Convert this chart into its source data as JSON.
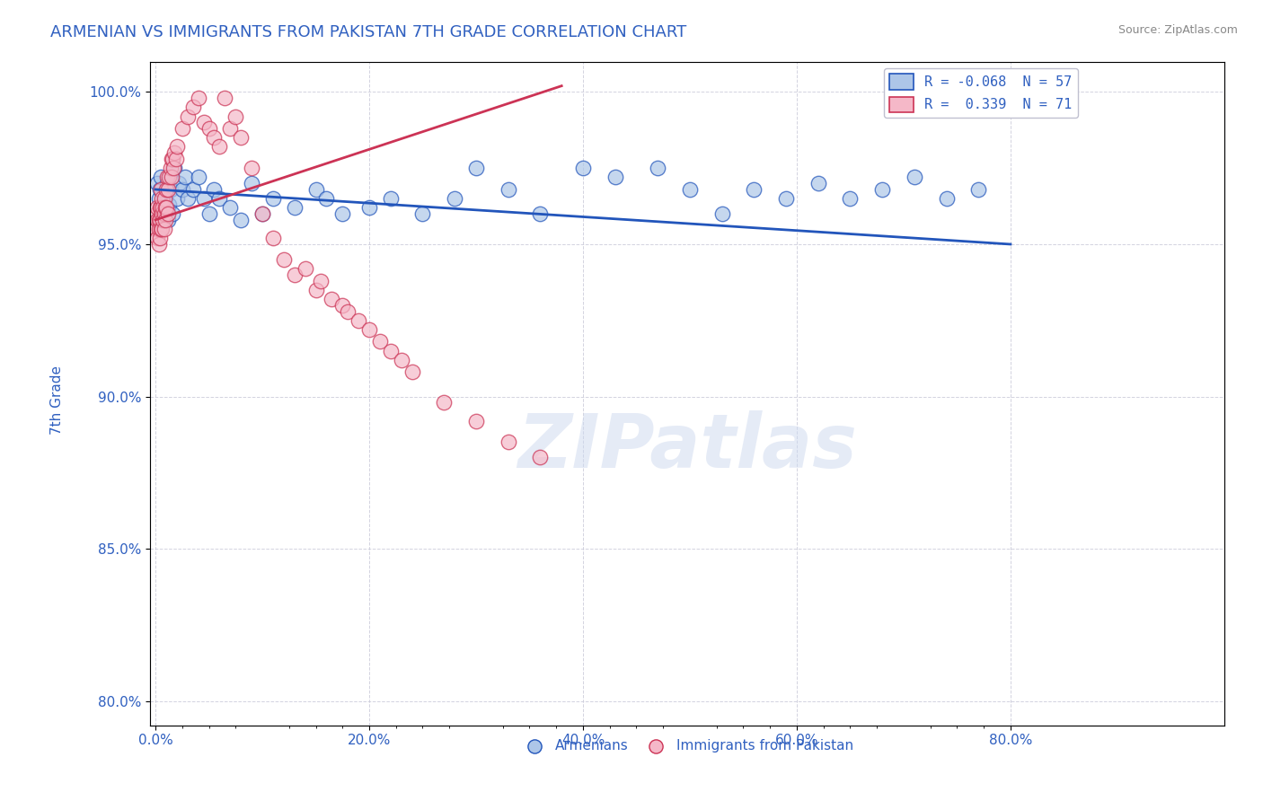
{
  "title": "ARMENIAN VS IMMIGRANTS FROM PAKISTAN 7TH GRADE CORRELATION CHART",
  "source": "Source: ZipAtlas.com",
  "ylabel": "7th Grade",
  "xlabel_ticks": [
    "0.0%",
    "",
    "",
    "",
    "",
    "",
    "",
    "",
    "20.0%",
    "",
    "",
    "",
    "",
    "",
    "",
    "",
    "40.0%",
    "",
    "",
    "",
    "",
    "",
    "",
    "",
    "60.0%",
    "",
    "",
    "",
    "",
    "",
    "",
    "",
    "80.0%"
  ],
  "xtick_vals": [
    0.0,
    0.025,
    0.05,
    0.075,
    0.1,
    0.125,
    0.15,
    0.175,
    0.2,
    0.225,
    0.25,
    0.275,
    0.3,
    0.325,
    0.35,
    0.375,
    0.4,
    0.425,
    0.45,
    0.475,
    0.5,
    0.525,
    0.55,
    0.575,
    0.6,
    0.625,
    0.65,
    0.675,
    0.7,
    0.725,
    0.75,
    0.775,
    0.8
  ],
  "xlabel_labels": [
    "0.0%",
    "",
    "",
    "",
    "",
    "",
    "",
    "",
    "20.0%",
    "",
    "",
    "",
    "",
    "",
    "",
    "",
    "40.0%",
    "",
    "",
    "",
    "",
    "",
    "",
    "",
    "60.0%",
    "",
    "",
    "",
    "",
    "",
    "",
    "",
    "80.0%"
  ],
  "ytick_vals": [
    0.8,
    0.85,
    0.9,
    0.95,
    1.0
  ],
  "ylabel_labels": [
    "80.0%",
    "85.0%",
    "90.0%",
    "95.0%",
    "100.0%"
  ],
  "xlim": [
    -0.005,
    0.815
  ],
  "ylim": [
    0.792,
    1.01
  ],
  "legend_blue_label": "R = -0.068  N = 57",
  "legend_pink_label": "R =  0.339  N = 71",
  "blue_color": "#adc6e8",
  "pink_color": "#f5b8c8",
  "blue_line_color": "#2255bb",
  "pink_line_color": "#cc3355",
  "watermark": "ZIPatlas",
  "blue_x": [
    0.002,
    0.003,
    0.004,
    0.005,
    0.006,
    0.007,
    0.008,
    0.009,
    0.01,
    0.011,
    0.012,
    0.013,
    0.014,
    0.015,
    0.016,
    0.018,
    0.02,
    0.022,
    0.025,
    0.028,
    0.03,
    0.035,
    0.04,
    0.045,
    0.05,
    0.055,
    0.06,
    0.07,
    0.08,
    0.09,
    0.1,
    0.11,
    0.13,
    0.15,
    0.16,
    0.175,
    0.2,
    0.22,
    0.25,
    0.28,
    0.3,
    0.33,
    0.36,
    0.4,
    0.43,
    0.47,
    0.5,
    0.53,
    0.56,
    0.59,
    0.62,
    0.65,
    0.68,
    0.71,
    0.74,
    0.77,
    0.8
  ],
  "blue_y": [
    0.97,
    0.965,
    0.968,
    0.972,
    0.96,
    0.963,
    0.958,
    0.965,
    0.96,
    0.97,
    0.958,
    0.963,
    0.968,
    0.972,
    0.96,
    0.975,
    0.965,
    0.97,
    0.968,
    0.972,
    0.965,
    0.968,
    0.972,
    0.965,
    0.96,
    0.968,
    0.965,
    0.962,
    0.958,
    0.97,
    0.96,
    0.965,
    0.962,
    0.968,
    0.965,
    0.96,
    0.962,
    0.965,
    0.96,
    0.965,
    0.975,
    0.968,
    0.96,
    0.975,
    0.972,
    0.975,
    0.968,
    0.96,
    0.968,
    0.965,
    0.97,
    0.965,
    0.968,
    0.972,
    0.965,
    0.968,
    1.0
  ],
  "pink_x": [
    0.001,
    0.001,
    0.002,
    0.002,
    0.002,
    0.003,
    0.003,
    0.003,
    0.004,
    0.004,
    0.004,
    0.005,
    0.005,
    0.005,
    0.006,
    0.006,
    0.006,
    0.007,
    0.007,
    0.008,
    0.008,
    0.008,
    0.009,
    0.009,
    0.01,
    0.01,
    0.011,
    0.012,
    0.012,
    0.013,
    0.014,
    0.015,
    0.015,
    0.016,
    0.017,
    0.018,
    0.019,
    0.02,
    0.025,
    0.03,
    0.035,
    0.04,
    0.045,
    0.05,
    0.055,
    0.06,
    0.065,
    0.07,
    0.075,
    0.08,
    0.09,
    0.1,
    0.11,
    0.12,
    0.13,
    0.14,
    0.15,
    0.155,
    0.165,
    0.175,
    0.18,
    0.19,
    0.2,
    0.21,
    0.22,
    0.23,
    0.24,
    0.27,
    0.3,
    0.33,
    0.36
  ],
  "pink_y": [
    0.96,
    0.955,
    0.962,
    0.958,
    0.952,
    0.958,
    0.955,
    0.95,
    0.962,
    0.958,
    0.952,
    0.968,
    0.962,
    0.955,
    0.965,
    0.96,
    0.955,
    0.962,
    0.958,
    0.965,
    0.96,
    0.955,
    0.962,
    0.958,
    0.968,
    0.962,
    0.972,
    0.968,
    0.96,
    0.972,
    0.975,
    0.978,
    0.972,
    0.978,
    0.975,
    0.98,
    0.978,
    0.982,
    0.988,
    0.992,
    0.995,
    0.998,
    0.99,
    0.988,
    0.985,
    0.982,
    0.998,
    0.988,
    0.992,
    0.985,
    0.975,
    0.96,
    0.952,
    0.945,
    0.94,
    0.942,
    0.935,
    0.938,
    0.932,
    0.93,
    0.928,
    0.925,
    0.922,
    0.918,
    0.915,
    0.912,
    0.908,
    0.898,
    0.892,
    0.885,
    0.88
  ],
  "blue_trend_x": [
    0.0,
    0.8
  ],
  "blue_trend_y": [
    0.968,
    0.95
  ],
  "pink_trend_x": [
    0.0,
    0.38
  ],
  "pink_trend_y": [
    0.958,
    1.002
  ]
}
